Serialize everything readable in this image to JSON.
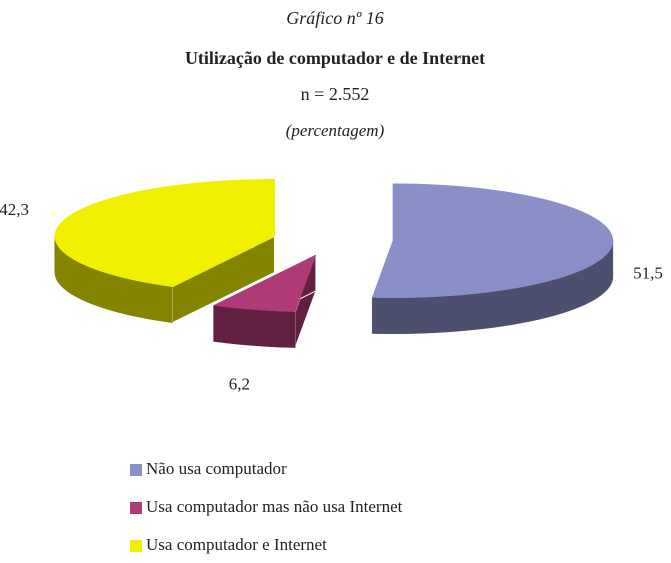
{
  "chart_data": {
    "type": "pie3d",
    "subtitle": "Gráfico nº 16",
    "title": "Utilização de computador e de Internet",
    "n": "n = 2.552",
    "unit": "(percentagem)",
    "categories": [
      "Não usa computador",
      "Usa computador mas não usa Internet",
      "Usa computador e Internet"
    ],
    "values": [
      51.5,
      6.2,
      42.3
    ],
    "value_labels": [
      "51,5",
      "6,2",
      "42,3"
    ],
    "colors": [
      "#8b8fc8",
      "#b03a78",
      "#f0f000"
    ],
    "legend": "bottom"
  }
}
